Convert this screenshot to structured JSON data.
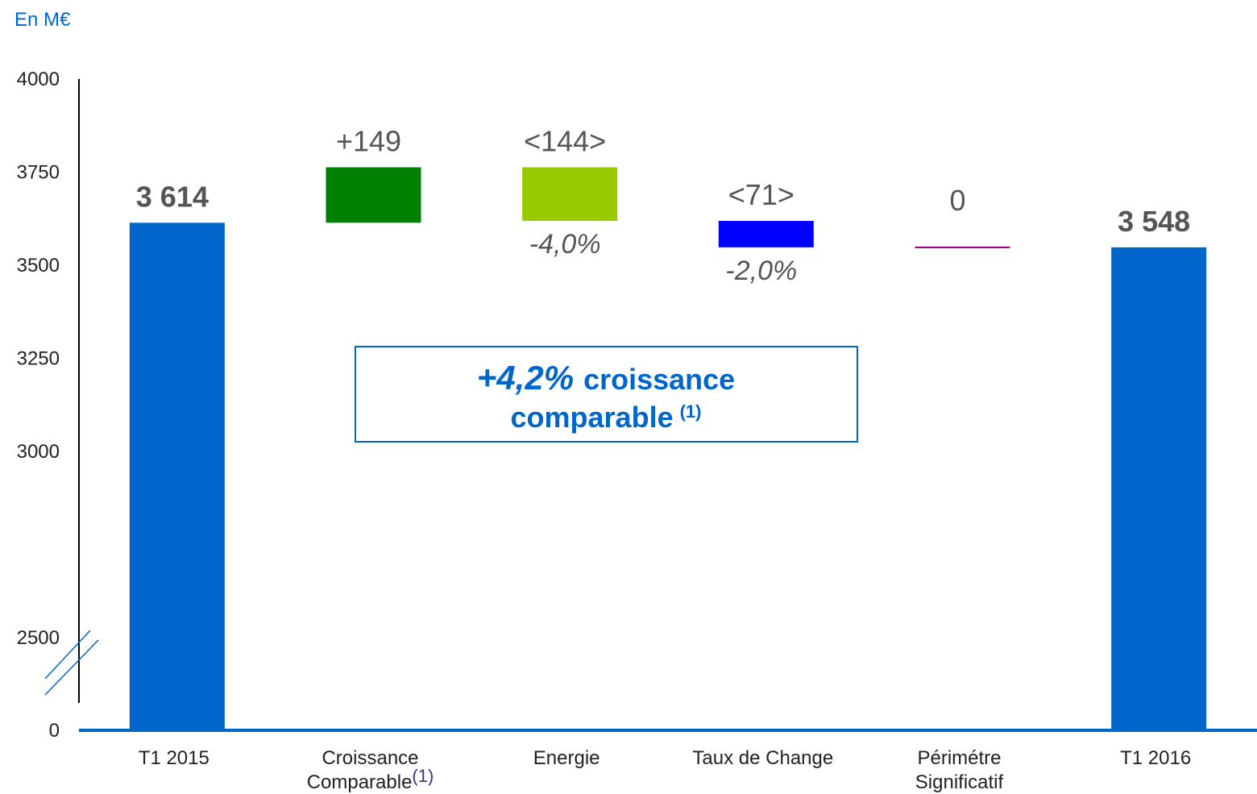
{
  "chart_data": {
    "type": "waterfall",
    "unit_label": "En M€",
    "categories": [
      "T1 2015",
      "Croissance\nComparable",
      "Energie",
      "Taux de Change",
      "Périmétre\nSignificatif",
      "T1 2016"
    ],
    "category_notes": [
      null,
      "(1)",
      null,
      null,
      null,
      null
    ],
    "values": [
      3614,
      149,
      -144,
      -71,
      0,
      3548
    ],
    "value_labels": [
      "3 614",
      "+149",
      "<144>",
      "<71>",
      "0",
      "3 548"
    ],
    "percent_labels": [
      null,
      null,
      "-4,0%",
      "-2,0%",
      null,
      null
    ],
    "measure": [
      "absolute",
      "relative",
      "relative",
      "relative",
      "relative",
      "total"
    ],
    "colors": [
      "#0066cc",
      "#008000",
      "#99cc00",
      "#0000ff",
      "#800080",
      "#0066cc"
    ],
    "ylim": [
      0,
      4000
    ],
    "yticks": [
      0,
      2500,
      3000,
      3250,
      3500,
      3750,
      4000
    ],
    "axis_break": true,
    "grid": false,
    "callout": {
      "highlight": "+4,2%",
      "lines": [
        "croissance",
        "comparable"
      ],
      "note": "(1)"
    }
  }
}
